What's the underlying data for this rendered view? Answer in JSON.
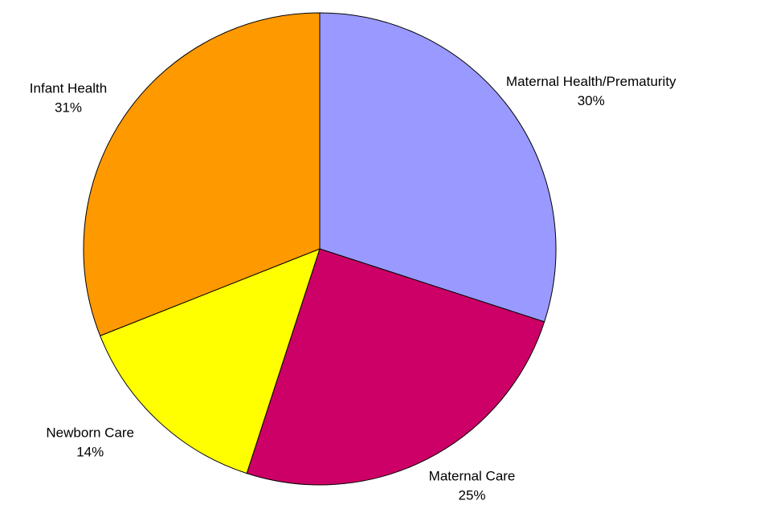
{
  "chart_data": {
    "type": "pie",
    "categories": [
      "Maternal Health/Prematurity",
      "Maternal Care",
      "Newborn Care",
      "Infant Health"
    ],
    "values": [
      30,
      25,
      14,
      31
    ],
    "value_labels": [
      "30%",
      "25%",
      "14%",
      "31%"
    ],
    "colors": [
      "#9999ff",
      "#cc0066",
      "#ffff00",
      "#ff9900"
    ]
  }
}
